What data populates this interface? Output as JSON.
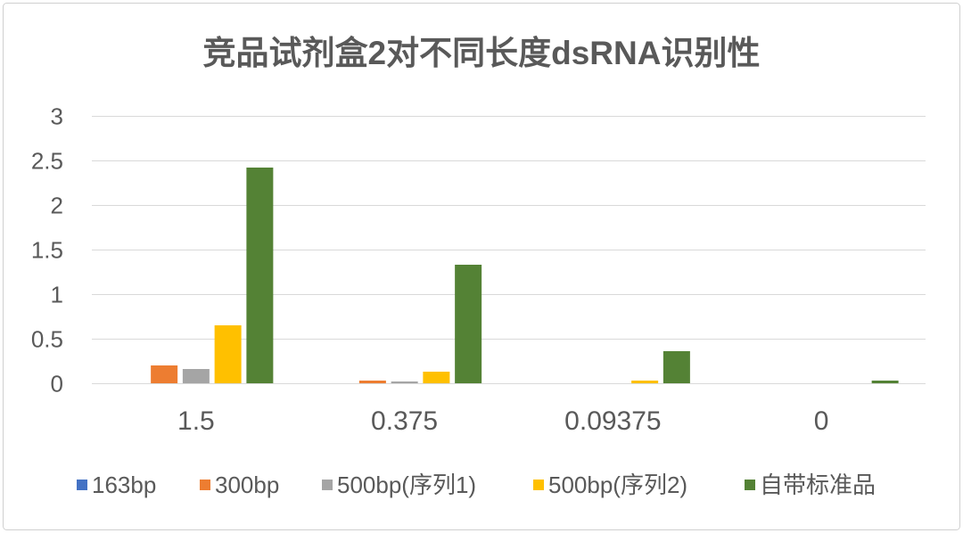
{
  "chart_data": {
    "type": "bar",
    "title": "竞品试剂盒2对不同长度dsRNA识别性",
    "categories": [
      "1.5",
      "0.375",
      "0.09375",
      "0"
    ],
    "series": [
      {
        "name": "163bp",
        "color": "#4472C4",
        "values": [
          0,
          0,
          0,
          0
        ]
      },
      {
        "name": "300bp",
        "color": "#ED7D31",
        "values": [
          0.2,
          0.03,
          0,
          0
        ]
      },
      {
        "name": "500bp(序列1)",
        "color": "#A5A5A5",
        "values": [
          0.16,
          0.02,
          0,
          0
        ]
      },
      {
        "name": "500bp(序列2)",
        "color": "#FFC000",
        "values": [
          0.65,
          0.13,
          0.03,
          0
        ]
      },
      {
        "name": "自带标准品",
        "color": "#548235",
        "values": [
          2.42,
          1.33,
          0.36,
          0.03
        ]
      }
    ],
    "ylim": [
      0,
      3
    ],
    "yticks": [
      0,
      0.5,
      1,
      1.5,
      2,
      2.5,
      3
    ],
    "grid": true,
    "legend": "bottom"
  }
}
